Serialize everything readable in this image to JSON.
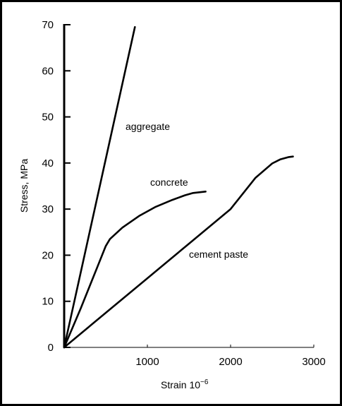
{
  "chart_data": {
    "type": "line",
    "title": "",
    "xlabel": "Strain 10",
    "xlabel_superscript": "−6",
    "ylabel": "Stress, MPa",
    "xlim": [
      0,
      3000
    ],
    "ylim": [
      0,
      70
    ],
    "x_ticks": [
      1000,
      2000,
      3000
    ],
    "y_ticks": [
      0,
      10,
      20,
      30,
      40,
      50,
      60,
      70
    ],
    "grid": false,
    "legend": "none",
    "series": [
      {
        "name": "aggregate",
        "x": [
          0,
          850
        ],
        "y": [
          0,
          69.5
        ]
      },
      {
        "name": "concrete",
        "x": [
          0,
          200,
          400,
          500,
          550,
          700,
          900,
          1100,
          1300,
          1450,
          1550,
          1700
        ],
        "y": [
          0,
          8.5,
          17.5,
          22,
          23.5,
          26,
          28.5,
          30.5,
          32,
          33,
          33.5,
          33.8
        ]
      },
      {
        "name": "cement paste",
        "x": [
          0,
          500,
          1000,
          1500,
          2000,
          2300,
          2500,
          2600,
          2700,
          2750
        ],
        "y": [
          0,
          7.5,
          15,
          22.5,
          30,
          36.8,
          39.9,
          40.8,
          41.3,
          41.4
        ]
      }
    ]
  }
}
